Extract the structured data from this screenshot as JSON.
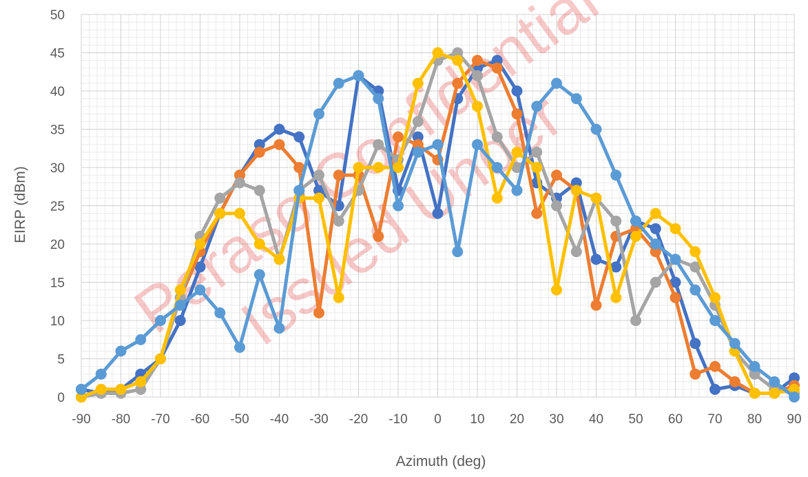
{
  "chart_data": {
    "type": "line",
    "title": "",
    "xlabel": "Azimuth (deg)",
    "ylabel": "EIRP (dBm)",
    "xlim": [
      -90,
      90
    ],
    "ylim": [
      0,
      50
    ],
    "x_ticks": [
      -90,
      -80,
      -70,
      -60,
      -50,
      -40,
      -30,
      -20,
      -10,
      0,
      10,
      20,
      30,
      40,
      50,
      60,
      70,
      80,
      90
    ],
    "y_ticks": [
      0,
      5,
      10,
      15,
      20,
      25,
      30,
      35,
      40,
      45,
      50
    ],
    "grid": true,
    "legend": "none",
    "x": [
      -90,
      -85,
      -80,
      -75,
      -70,
      -65,
      -60,
      -55,
      -50,
      -45,
      -40,
      -35,
      -30,
      -25,
      -20,
      -15,
      -10,
      -5,
      0,
      5,
      10,
      15,
      20,
      25,
      30,
      35,
      40,
      45,
      50,
      55,
      60,
      65,
      70,
      75,
      80,
      85,
      90
    ],
    "series": [
      {
        "color": "#4472C4",
        "values": [
          1,
          0.5,
          1,
          3,
          5,
          10,
          17,
          24,
          29,
          33,
          35,
          34,
          27,
          25,
          42,
          40,
          27,
          34,
          24,
          39,
          43,
          44,
          40,
          28,
          26,
          28,
          18,
          17,
          23,
          22,
          15,
          7,
          1,
          1.5,
          0.5,
          0.5,
          2.5
        ]
      },
      {
        "color": "#ED7D31",
        "values": [
          0,
          1,
          1,
          2,
          5,
          13,
          19,
          24,
          29,
          32,
          33,
          30,
          11,
          29,
          29,
          21,
          34,
          33,
          31,
          41,
          44,
          43,
          37,
          24,
          29,
          27,
          12,
          21,
          22,
          19,
          13,
          3,
          4,
          2,
          0.5,
          0.5,
          1.5
        ]
      },
      {
        "color": "#A5A5A5",
        "values": [
          0,
          0.5,
          0.5,
          1,
          5,
          13,
          21,
          26,
          28,
          27,
          18,
          27,
          29,
          23,
          27,
          33,
          31,
          36,
          44,
          45,
          42,
          34,
          30,
          32,
          25,
          19,
          26,
          23,
          10,
          15,
          18,
          17,
          12,
          6,
          3,
          1,
          0.5
        ]
      },
      {
        "color": "#FFC000",
        "values": [
          0,
          1,
          1,
          2,
          5,
          14,
          20,
          24,
          24,
          20,
          18,
          26,
          26,
          13,
          30,
          30,
          30,
          41,
          45,
          44,
          38,
          26,
          32,
          30,
          14,
          27,
          26,
          13,
          21,
          24,
          22,
          19,
          13,
          6,
          0.5,
          0.5,
          1
        ]
      },
      {
        "color": "#5B9BD5",
        "values": [
          1,
          3,
          6,
          7.5,
          10,
          12,
          14,
          11,
          6.5,
          16,
          9,
          27,
          37,
          41,
          42,
          39,
          25,
          32,
          33,
          19,
          33,
          30,
          27,
          38,
          41,
          39,
          35,
          29,
          23,
          20,
          18,
          14,
          10,
          7,
          4,
          2,
          0
        ]
      }
    ]
  },
  "watermark": {
    "line1": "Peraso Confidential",
    "line2": "Issued Under"
  }
}
